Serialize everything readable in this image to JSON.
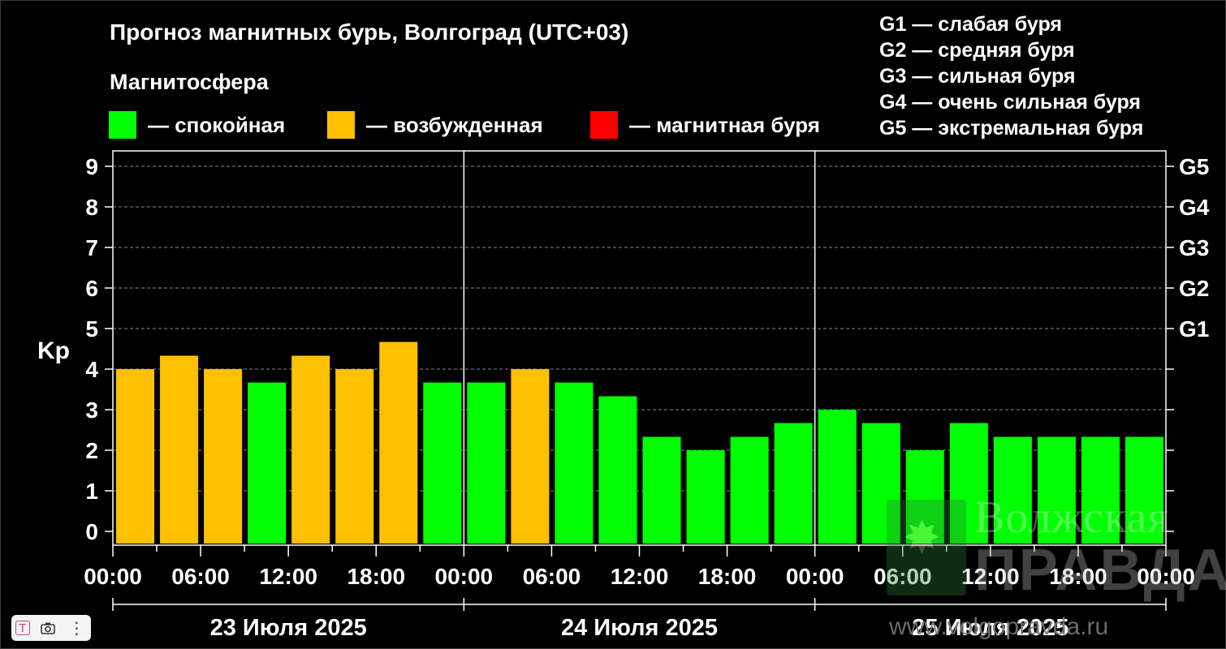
{
  "header": {
    "title": "Прогноз магнитных бурь, Волгоград (UTC+03)",
    "subtitle": "Магнитосфера"
  },
  "legend": [
    {
      "label": "— спокойная",
      "color": "#00ff00"
    },
    {
      "label": "— возбужденная",
      "color": "#ffc000"
    },
    {
      "label": "— магнитная буря",
      "color": "#ff0000"
    }
  ],
  "g_legend": [
    "G1 — слабая буря",
    "G2 — средняя буря",
    "G3 — сильная буря",
    "G4 — очень сильная буря",
    "G5 — экстремальная буря"
  ],
  "watermark": {
    "line1": "Волжская",
    "line2": "ПРАВДА",
    "site": "www.volgopravda.ru"
  },
  "toolbar": {
    "icons": [
      "text-icon",
      "camera-icon",
      "more-icon"
    ]
  },
  "chart_data": {
    "type": "bar",
    "ylabel": "Kp",
    "ylim": [
      0,
      9
    ],
    "yticks": [
      "0",
      "1",
      "2",
      "3",
      "4",
      "5",
      "6",
      "7",
      "8",
      "9"
    ],
    "right_ticks": [
      {
        "value": 5,
        "label": "G1"
      },
      {
        "value": 6,
        "label": "G2"
      },
      {
        "value": 7,
        "label": "G3"
      },
      {
        "value": 8,
        "label": "G4"
      },
      {
        "value": 9,
        "label": "G5"
      }
    ],
    "grid": true,
    "xticks": [
      "00:00",
      "06:00",
      "12:00",
      "18:00",
      "00:00",
      "06:00",
      "12:00",
      "18:00",
      "00:00",
      "06:00",
      "12:00",
      "18:00",
      "00:00"
    ],
    "days": [
      "23 Июля 2025",
      "24 Июля 2025",
      "25 Июля 2025"
    ],
    "values": [
      4.0,
      4.33,
      4.0,
      3.67,
      4.33,
      4.0,
      4.67,
      3.67,
      3.67,
      4.0,
      3.67,
      3.33,
      2.33,
      2.0,
      2.33,
      2.67,
      3.0,
      2.67,
      2.0,
      2.67,
      2.33,
      2.33,
      2.33,
      2.33
    ],
    "levels": [
      "excited",
      "excited",
      "excited",
      "calm",
      "excited",
      "excited",
      "excited",
      "calm",
      "calm",
      "excited",
      "calm",
      "calm",
      "calm",
      "calm",
      "calm",
      "calm",
      "calm",
      "calm",
      "calm",
      "calm",
      "calm",
      "calm",
      "calm",
      "calm"
    ],
    "colors": {
      "calm": "#00ff00",
      "excited": "#ffc000",
      "storm": "#ff0000"
    }
  }
}
